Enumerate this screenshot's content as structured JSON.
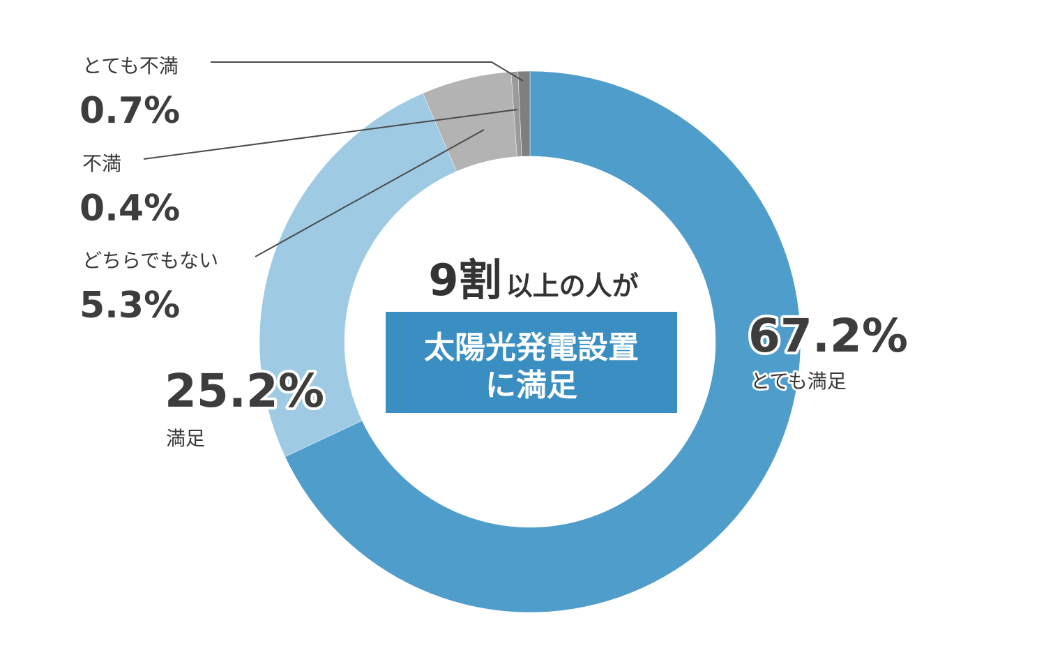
{
  "chart_data": {
    "type": "pie",
    "title": "",
    "series": [
      {
        "name": "",
        "values": [
          67.2,
          25.2,
          5.3,
          0.4,
          0.7
        ]
      }
    ],
    "categories": [
      "とても満足",
      "満足",
      "どちらでもない",
      "不満",
      "とても不満"
    ],
    "value_labels": [
      "67.2%",
      "25.2%",
      "5.3%",
      "0.4%",
      "0.7%"
    ],
    "colors": [
      "#4f9dcb",
      "#9ecae4",
      "#b3b3b3",
      "#9a9a9a",
      "#7f7f7f"
    ],
    "hole": "donut",
    "start_angle_deg": 0,
    "direction": "clockwise",
    "legend": "none",
    "center": {
      "emphasis": "9割",
      "text": "以上の人が",
      "box_lines": [
        "太陽光発電設置",
        "に満足"
      ],
      "box_color": "#3a8ec2"
    }
  }
}
